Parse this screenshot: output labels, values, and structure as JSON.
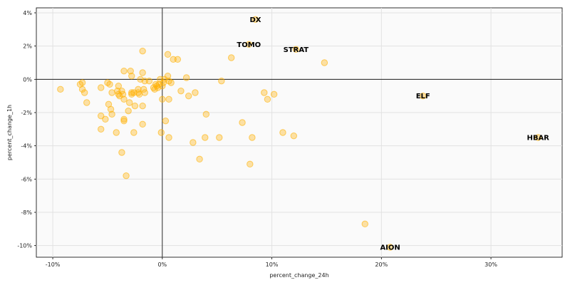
{
  "chart_data": {
    "type": "scatter",
    "title": "",
    "xlabel": "percent_change_24h",
    "ylabel": "percent_change_1h",
    "xlim": [
      -11.5,
      36.5
    ],
    "ylim": [
      -10.7,
      4.3
    ],
    "x_ticks": [
      -10,
      0,
      10,
      20,
      30
    ],
    "x_tick_labels": [
      "-10%",
      "0%",
      "10%",
      "20%",
      "30%"
    ],
    "y_ticks": [
      4,
      2,
      0,
      -2,
      -4,
      -6,
      -8,
      -10
    ],
    "y_tick_labels": [
      "4%",
      "2%",
      "0%",
      "-2%",
      "-4%",
      "-6%",
      "-8%",
      "-10%"
    ],
    "grid": true,
    "point_color": "#ffb000",
    "reference_lines": {
      "x": 0,
      "y": 0
    },
    "points": [
      [
        -9.3,
        -0.6
      ],
      [
        -7.5,
        -0.3
      ],
      [
        -7.3,
        -0.2
      ],
      [
        -7.3,
        -0.6
      ],
      [
        -7.1,
        -0.8
      ],
      [
        -6.9,
        -1.4
      ],
      [
        -5.6,
        -0.5
      ],
      [
        -5.6,
        -2.2
      ],
      [
        -5.6,
        -3.0
      ],
      [
        -5.2,
        -2.4
      ],
      [
        -5.0,
        -0.2
      ],
      [
        -4.9,
        -1.5
      ],
      [
        -4.8,
        -0.3
      ],
      [
        -4.7,
        -1.8
      ],
      [
        -4.6,
        -0.8
      ],
      [
        -4.6,
        -2.1
      ],
      [
        -4.2,
        -3.2
      ],
      [
        -4.1,
        -0.7
      ],
      [
        -4.0,
        -0.4
      ],
      [
        -4.0,
        -0.9
      ],
      [
        -3.9,
        -1.0
      ],
      [
        -3.7,
        -4.4
      ],
      [
        -3.7,
        -0.7
      ],
      [
        -3.6,
        -0.9
      ],
      [
        -3.5,
        0.5
      ],
      [
        -3.5,
        -1.2
      ],
      [
        -3.5,
        -2.4
      ],
      [
        -3.5,
        -2.5
      ],
      [
        -3.3,
        -5.8
      ],
      [
        -3.1,
        -1.9
      ],
      [
        -3.0,
        -1.4
      ],
      [
        -2.9,
        0.5
      ],
      [
        -2.8,
        0.2
      ],
      [
        -2.8,
        -0.8
      ],
      [
        -2.8,
        -0.9
      ],
      [
        -2.6,
        -0.8
      ],
      [
        -2.6,
        -3.2
      ],
      [
        -2.5,
        -1.6
      ],
      [
        -2.2,
        -0.6
      ],
      [
        -2.2,
        -0.8
      ],
      [
        -2.1,
        -0.9
      ],
      [
        -2.0,
        0.0
      ],
      [
        -1.8,
        1.7
      ],
      [
        -1.8,
        0.4
      ],
      [
        -1.8,
        -1.6
      ],
      [
        -1.8,
        -2.7
      ],
      [
        -1.7,
        -0.6
      ],
      [
        -1.6,
        -0.8
      ],
      [
        -1.6,
        -0.1
      ],
      [
        -1.2,
        -0.1
      ],
      [
        -0.8,
        -0.5
      ],
      [
        -0.7,
        -0.6
      ],
      [
        -0.6,
        -0.3
      ],
      [
        -0.5,
        -0.4
      ],
      [
        -0.4,
        -0.5
      ],
      [
        -0.3,
        -0.3
      ],
      [
        -0.2,
        0.0
      ],
      [
        -0.1,
        -3.2
      ],
      [
        0.0,
        -1.2
      ],
      [
        0.0,
        -0.4
      ],
      [
        0.1,
        -0.2
      ],
      [
        0.2,
        0.0
      ],
      [
        0.3,
        -2.5
      ],
      [
        0.5,
        1.5
      ],
      [
        0.5,
        0.2
      ],
      [
        0.6,
        -1.2
      ],
      [
        0.6,
        -0.1
      ],
      [
        0.6,
        -3.5
      ],
      [
        0.8,
        -0.2
      ],
      [
        1.0,
        1.2
      ],
      [
        1.4,
        1.2
      ],
      [
        1.7,
        -0.7
      ],
      [
        2.2,
        0.1
      ],
      [
        2.4,
        -1.0
      ],
      [
        2.8,
        -3.8
      ],
      [
        3.0,
        -0.8
      ],
      [
        3.4,
        -4.8
      ],
      [
        3.9,
        -3.5
      ],
      [
        4.0,
        -2.1
      ],
      [
        5.2,
        -3.5
      ],
      [
        5.4,
        -0.1
      ],
      [
        6.3,
        1.3
      ],
      [
        7.3,
        -2.6
      ],
      [
        8.0,
        -5.1
      ],
      [
        8.2,
        -3.5
      ],
      [
        9.3,
        -0.8
      ],
      [
        9.6,
        -1.2
      ],
      [
        10.2,
        -0.9
      ],
      [
        11.0,
        -3.2
      ],
      [
        12.0,
        -3.4
      ],
      [
        14.8,
        1.0
      ],
      [
        18.5,
        -8.7
      ]
    ],
    "labeled_points": [
      {
        "label": "DX",
        "x": 8.5,
        "y": 3.6
      },
      {
        "label": "TOMO",
        "x": 7.9,
        "y": 2.1
      },
      {
        "label": "STRAT",
        "x": 12.2,
        "y": 1.8
      },
      {
        "label": "ELF",
        "x": 23.8,
        "y": -1.0
      },
      {
        "label": "HBAR",
        "x": 34.3,
        "y": -3.5
      },
      {
        "label": "AION",
        "x": 20.8,
        "y": -10.1
      }
    ]
  }
}
